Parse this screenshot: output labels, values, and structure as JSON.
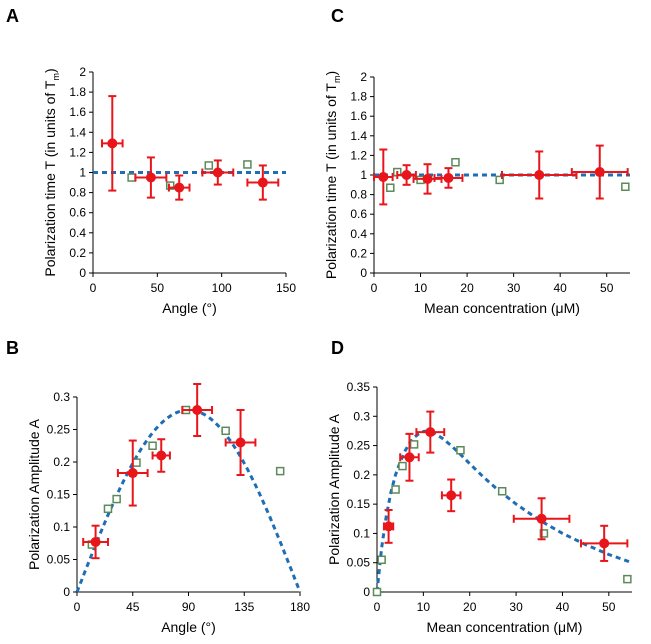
{
  "colors": {
    "red": "#e8161b",
    "green": "#5a8a5a",
    "fit": "#1f6db5",
    "axis": "#000000"
  },
  "chart_data": [
    {
      "panel": "A",
      "type": "scatter",
      "xlabel": "Angle (°)",
      "ylabel_main": "Polarization time T (in units of T",
      "ylabel_sub": "m",
      "ylabel_end": ")",
      "xlim": [
        0,
        150
      ],
      "ylim": [
        0,
        2
      ],
      "xticks": [
        0,
        50,
        100,
        150
      ],
      "yticks": [
        0,
        0.2,
        0.4,
        0.6,
        0.8,
        1,
        1.2,
        1.4,
        1.6,
        1.8,
        2
      ],
      "ytick_labels": [
        "0",
        "0.2",
        "0.4",
        "0.6",
        "0.8",
        "1",
        "1.2",
        "1.4",
        "1.6",
        "1.8",
        "2"
      ],
      "fit": {
        "style": "dashed",
        "type": "constant",
        "value": 1.0,
        "x_range": [
          0,
          150
        ]
      },
      "red_points": [
        {
          "x": 15,
          "y": 1.29,
          "xerr": 8,
          "yerr": 0.47
        },
        {
          "x": 45,
          "y": 0.95,
          "xerr": 12,
          "yerr": 0.2
        },
        {
          "x": 67,
          "y": 0.85,
          "xerr": 8,
          "yerr": 0.12
        },
        {
          "x": 97,
          "y": 1.0,
          "xerr": 12,
          "yerr": 0.12
        },
        {
          "x": 132,
          "y": 0.9,
          "xerr": 12,
          "yerr": 0.17
        }
      ],
      "green_points": [
        {
          "x": 30,
          "y": 0.95
        },
        {
          "x": 60,
          "y": 0.87
        },
        {
          "x": 90,
          "y": 1.07
        },
        {
          "x": 120,
          "y": 1.08
        }
      ]
    },
    {
      "panel": "C",
      "type": "scatter",
      "xlabel": "Mean concentration (μM)",
      "ylabel_main": "Polarization time T (in units of T",
      "ylabel_sub": "m",
      "ylabel_end": ")",
      "xlim": [
        0,
        55
      ],
      "ylim": [
        0,
        2
      ],
      "xticks": [
        0,
        10,
        20,
        30,
        40,
        50
      ],
      "yticks": [
        0,
        0.2,
        0.4,
        0.6,
        0.8,
        1,
        1.2,
        1.4,
        1.6,
        1.8,
        2
      ],
      "ytick_labels": [
        "0",
        "0.2",
        "0.4",
        "0.6",
        "0.8",
        "1",
        "1.2",
        "1.4",
        "1.6",
        "1.8",
        "2"
      ],
      "fit": {
        "style": "dashed",
        "type": "constant",
        "value": 1.0,
        "x_range": [
          0,
          55
        ]
      },
      "red_points": [
        {
          "x": 2,
          "y": 0.98,
          "xerr": 2,
          "yerr": 0.28
        },
        {
          "x": 7,
          "y": 1.0,
          "xerr": 2,
          "yerr": 0.1
        },
        {
          "x": 11.5,
          "y": 0.96,
          "xerr": 3,
          "yerr": 0.15
        },
        {
          "x": 16,
          "y": 0.97,
          "xerr": 3,
          "yerr": 0.1
        },
        {
          "x": 35.5,
          "y": 1.0,
          "xerr": 8,
          "yerr": 0.24
        },
        {
          "x": 48.5,
          "y": 1.03,
          "xerr": 6,
          "yerr": 0.27
        }
      ],
      "green_points": [
        {
          "x": 3.5,
          "y": 0.87
        },
        {
          "x": 5,
          "y": 1.03
        },
        {
          "x": 10,
          "y": 0.95
        },
        {
          "x": 17.5,
          "y": 1.13
        },
        {
          "x": 27,
          "y": 0.95
        },
        {
          "x": 54,
          "y": 0.88
        }
      ]
    },
    {
      "panel": "B",
      "type": "scatter",
      "xlabel": "Angle (°)",
      "ylabel_main": "Polarization Amplitude A",
      "xlim": [
        0,
        180
      ],
      "ylim": [
        0,
        0.3
      ],
      "xticks": [
        0,
        45,
        90,
        135,
        180
      ],
      "yticks": [
        0,
        0.05,
        0.1,
        0.15,
        0.2,
        0.25,
        0.3
      ],
      "ytick_labels": [
        "0",
        "0.05",
        "0.1",
        "0.15",
        "0.2",
        "0.25",
        "0.3"
      ],
      "fit": {
        "style": "dashed",
        "type": "sine",
        "amplitude": 0.28,
        "x_range": [
          0,
          180
        ]
      },
      "red_points": [
        {
          "x": 15,
          "y": 0.077,
          "xerr": 10,
          "yerr": 0.025
        },
        {
          "x": 45,
          "y": 0.183,
          "xerr": 12,
          "yerr": 0.05
        },
        {
          "x": 68,
          "y": 0.21,
          "xerr": 7,
          "yerr": 0.025
        },
        {
          "x": 97,
          "y": 0.28,
          "xerr": 12,
          "yerr": 0.04
        },
        {
          "x": 132,
          "y": 0.23,
          "xerr": 12,
          "yerr": 0.05
        }
      ],
      "green_points": [
        {
          "x": 12,
          "y": 0.073
        },
        {
          "x": 25,
          "y": 0.128
        },
        {
          "x": 32,
          "y": 0.143
        },
        {
          "x": 48,
          "y": 0.199
        },
        {
          "x": 61,
          "y": 0.225
        },
        {
          "x": 88,
          "y": 0.28
        },
        {
          "x": 120,
          "y": 0.248
        },
        {
          "x": 164,
          "y": 0.186
        }
      ]
    },
    {
      "panel": "D",
      "type": "scatter",
      "xlabel": "Mean concentration (μM)",
      "ylabel_main": "Polarization Amplitude A",
      "xlim": [
        0,
        55
      ],
      "ylim": [
        0,
        0.35
      ],
      "xticks": [
        0,
        10,
        20,
        30,
        40,
        50
      ],
      "yticks": [
        0,
        0.05,
        0.1,
        0.15,
        0.2,
        0.25,
        0.3,
        0.35
      ],
      "ytick_labels": [
        "0",
        "0.05",
        "0.1",
        "0.15",
        "0.2",
        "0.25",
        "0.3",
        "0.35"
      ],
      "fit": {
        "style": "dashed",
        "type": "peak",
        "x": [
          0,
          1,
          2,
          3,
          4,
          5,
          6,
          7,
          8,
          9,
          10,
          11,
          12,
          14,
          16,
          18,
          20,
          23,
          26,
          30,
          35,
          40,
          45,
          50,
          55
        ],
        "y": [
          0,
          0.075,
          0.13,
          0.17,
          0.2,
          0.222,
          0.24,
          0.254,
          0.264,
          0.27,
          0.274,
          0.275,
          0.273,
          0.263,
          0.25,
          0.235,
          0.219,
          0.196,
          0.175,
          0.15,
          0.123,
          0.1,
          0.081,
          0.064,
          0.05
        ]
      },
      "red_points": [
        {
          "x": 2.5,
          "y": 0.112,
          "xerr": 1,
          "yerr": 0.028
        },
        {
          "x": 7,
          "y": 0.23,
          "xerr": 2,
          "yerr": 0.04
        },
        {
          "x": 11.5,
          "y": 0.273,
          "xerr": 3,
          "yerr": 0.035
        },
        {
          "x": 16,
          "y": 0.165,
          "xerr": 2,
          "yerr": 0.027
        },
        {
          "x": 35.5,
          "y": 0.125,
          "xerr": 6,
          "yerr": 0.035
        },
        {
          "x": 49,
          "y": 0.083,
          "xerr": 5,
          "yerr": 0.03
        }
      ],
      "green_points": [
        {
          "x": 0,
          "y": 0.0
        },
        {
          "x": 1,
          "y": 0.055
        },
        {
          "x": 4,
          "y": 0.175
        },
        {
          "x": 5.5,
          "y": 0.215
        },
        {
          "x": 8,
          "y": 0.252
        },
        {
          "x": 18,
          "y": 0.242
        },
        {
          "x": 27,
          "y": 0.172
        },
        {
          "x": 36,
          "y": 0.1
        },
        {
          "x": 54,
          "y": 0.022
        }
      ]
    }
  ]
}
